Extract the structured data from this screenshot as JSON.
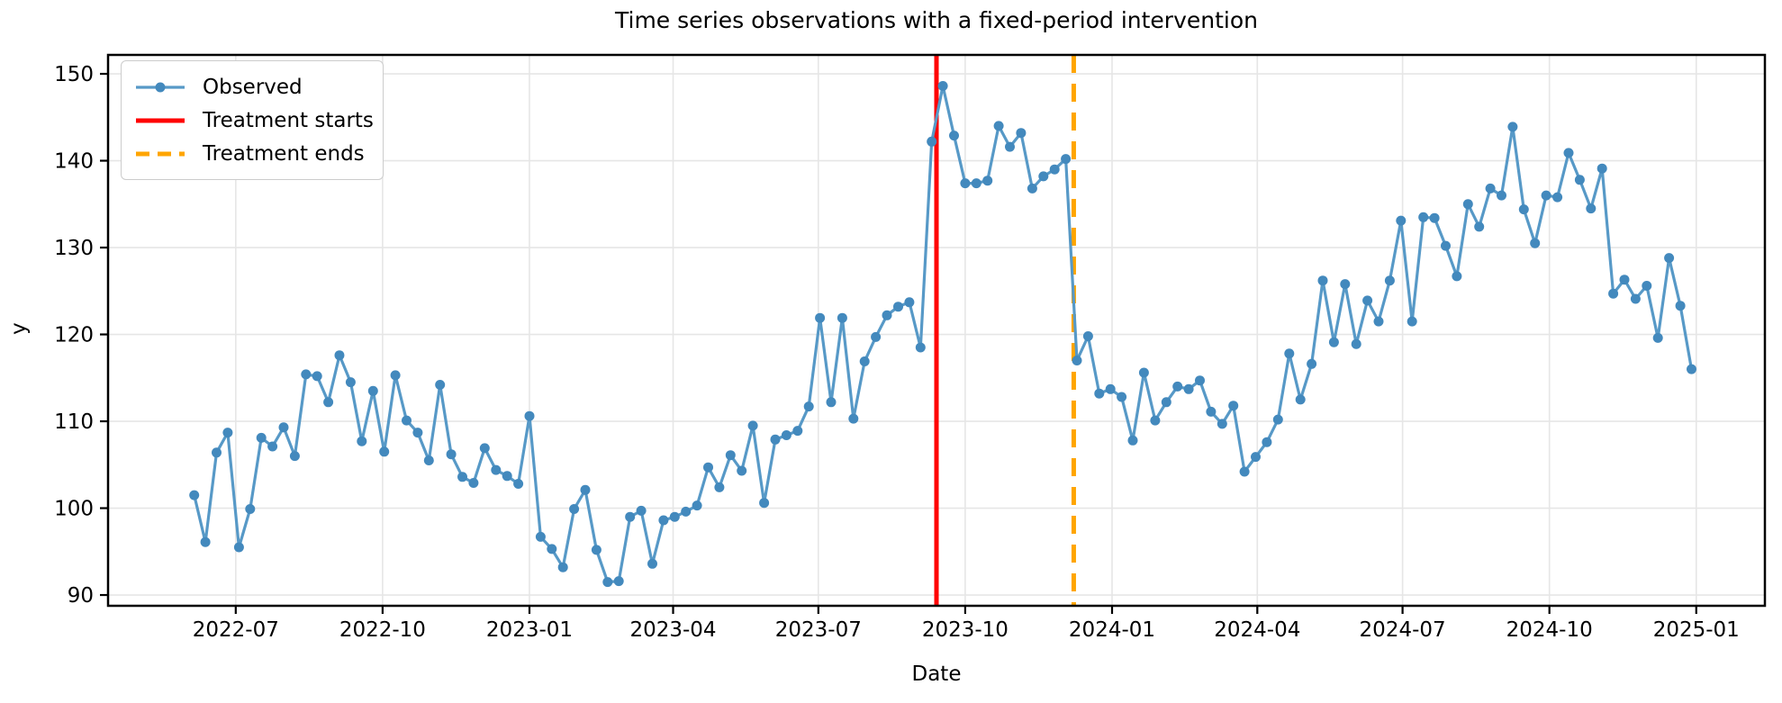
{
  "chart_data": {
    "type": "line",
    "title": "Time series observations with a fixed-period intervention",
    "xlabel": "Date",
    "ylabel": "y",
    "grid": true,
    "legend_position": "upper left",
    "legend": [
      {
        "label": "Observed",
        "style": "line-with-marker",
        "color": "#5799c7"
      },
      {
        "label": "Treatment starts",
        "style": "solid-vline",
        "color": "#ff0000"
      },
      {
        "label": "Treatment ends",
        "style": "dashed-vline",
        "color": "#ffa500"
      }
    ],
    "series": [
      {
        "name": "Observed",
        "x_start": "2022-06-05",
        "x_freq_days": 7,
        "values": [
          101.5,
          96.1,
          106.4,
          108.7,
          95.5,
          99.9,
          108.1,
          107.1,
          109.3,
          106.0,
          115.4,
          115.2,
          112.2,
          117.6,
          114.5,
          107.7,
          113.5,
          106.5,
          115.3,
          110.1,
          108.7,
          105.5,
          114.2,
          106.2,
          103.6,
          102.9,
          106.9,
          104.4,
          103.7,
          102.8,
          110.6,
          96.7,
          95.3,
          93.2,
          99.9,
          102.1,
          95.2,
          91.5,
          91.6,
          99.0,
          99.7,
          93.6,
          98.6,
          99.0,
          99.6,
          100.3,
          104.7,
          102.4,
          106.1,
          104.3,
          109.5,
          100.6,
          107.9,
          108.4,
          108.9,
          111.7,
          121.9,
          112.2,
          121.9,
          110.3,
          116.9,
          119.7,
          122.2,
          123.2,
          123.7,
          118.5,
          142.2,
          148.6,
          142.9,
          137.4,
          137.4,
          137.7,
          144.0,
          141.6,
          143.2,
          136.8,
          138.2,
          139.0,
          140.2,
          117.0,
          119.8,
          113.2,
          113.7,
          112.8,
          107.8,
          115.6,
          110.1,
          112.2,
          114.0,
          113.7,
          114.7,
          111.1,
          109.7,
          111.8,
          104.2,
          105.9,
          107.6,
          110.2,
          117.8,
          112.5,
          116.6,
          126.2,
          119.1,
          125.8,
          118.9,
          123.9,
          121.5,
          126.2,
          133.1,
          121.5,
          133.5,
          133.4,
          130.2,
          126.7,
          135.0,
          132.4,
          136.8,
          136.0,
          143.9,
          134.4,
          130.5,
          136.0,
          135.8,
          140.9,
          137.8,
          134.5,
          139.1,
          124.7,
          126.3,
          124.1,
          125.6,
          119.6,
          128.8,
          123.3,
          116.0
        ]
      }
    ],
    "vlines": [
      {
        "name": "treatment-start",
        "date": "2023-09-13",
        "color": "#ff0000",
        "dash": "solid",
        "label": "Treatment starts"
      },
      {
        "name": "treatment-end",
        "date": "2023-12-08",
        "color": "#ffa500",
        "dash": "dashed",
        "label": "Treatment ends"
      }
    ],
    "x_ticks": [
      {
        "date": "2022-07-01",
        "label": "2022-07"
      },
      {
        "date": "2022-10-01",
        "label": "2022-10"
      },
      {
        "date": "2023-01-01",
        "label": "2023-01"
      },
      {
        "date": "2023-04-01",
        "label": "2023-04"
      },
      {
        "date": "2023-07-01",
        "label": "2023-07"
      },
      {
        "date": "2023-10-01",
        "label": "2023-10"
      },
      {
        "date": "2024-01-01",
        "label": "2024-01"
      },
      {
        "date": "2024-04-01",
        "label": "2024-04"
      },
      {
        "date": "2024-07-01",
        "label": "2024-07"
      },
      {
        "date": "2024-10-01",
        "label": "2024-10"
      },
      {
        "date": "2025-01-01",
        "label": "2025-01"
      }
    ],
    "y_ticks": [
      90,
      100,
      110,
      120,
      130,
      140,
      150
    ],
    "xlim": [
      "2022-04-12",
      "2025-02-13"
    ],
    "ylim": [
      88.76,
      152.18
    ],
    "colors": {
      "line": "#5799c7",
      "marker": "#4389bd",
      "treatment_start": "#ff0000",
      "treatment_end": "#ffa500",
      "grid": "#e6e6e6",
      "spine": "#000000",
      "text": "#000000",
      "legend_border": "#cccccc"
    }
  }
}
